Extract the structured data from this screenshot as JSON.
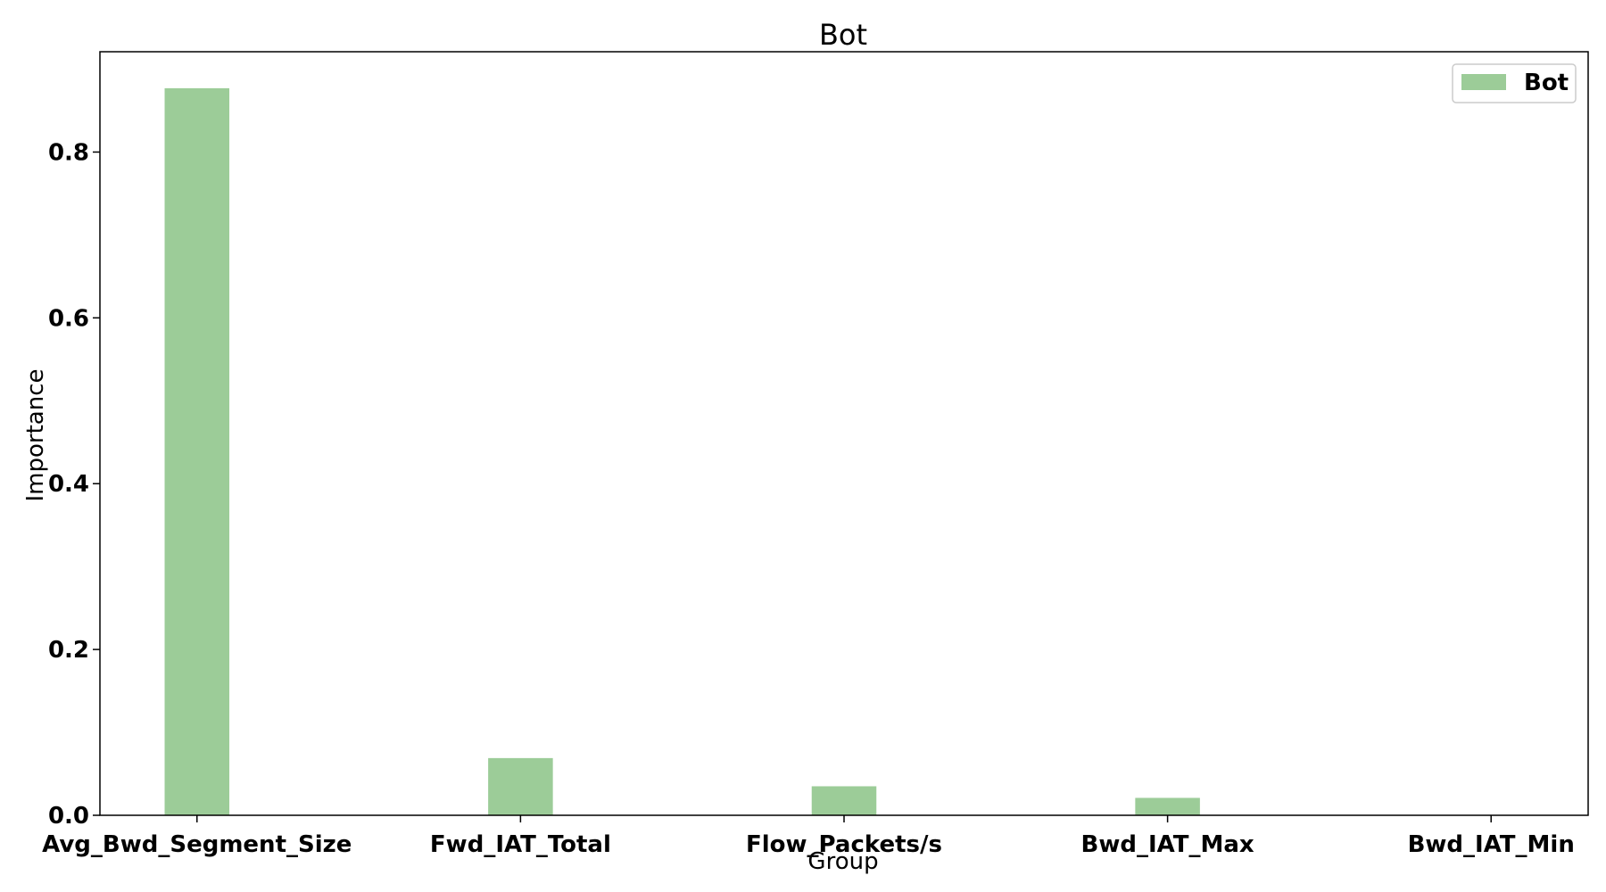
{
  "colors": {
    "bar": "#9ccc98",
    "axis": "#000000",
    "legend_border": "#cccccc"
  },
  "chart_data": {
    "type": "bar",
    "title": "Bot",
    "xlabel": "Group",
    "ylabel": "Importance",
    "categories": [
      "Avg_Bwd_Segment_Size",
      "Fwd_IAT_Total",
      "Flow_Packets/s",
      "Bwd_IAT_Max",
      "Bwd_IAT_Min"
    ],
    "series": [
      {
        "name": "Bot",
        "values": [
          0.877,
          0.069,
          0.035,
          0.021,
          0.0
        ]
      }
    ],
    "yticks": [
      "0.0",
      "0.2",
      "0.4",
      "0.6",
      "0.8"
    ],
    "ylim": [
      0,
      0.921
    ],
    "grid": false,
    "legend_position": "top-right"
  }
}
